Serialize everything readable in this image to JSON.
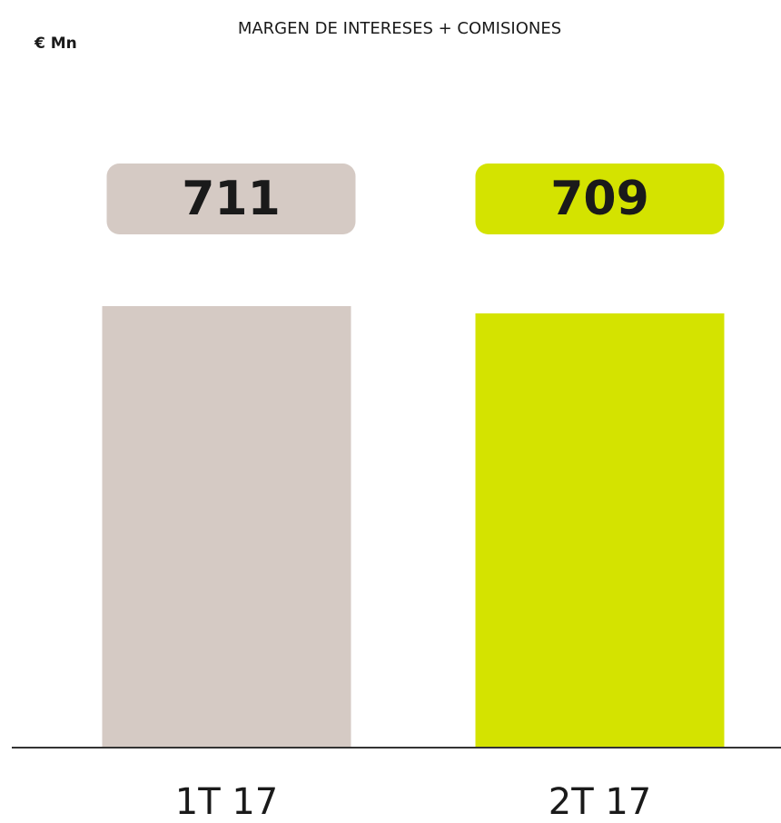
{
  "chart_data": {
    "type": "bar",
    "title": "MARGEN DE INTERESES + COMISIONES",
    "y_label": "€ Mn",
    "categories": [
      "1T 17",
      "2T 17"
    ],
    "values": [
      711,
      709
    ],
    "colors": [
      "#d5cac4",
      "#d4e300"
    ],
    "ylim": [
      590,
      711
    ]
  }
}
